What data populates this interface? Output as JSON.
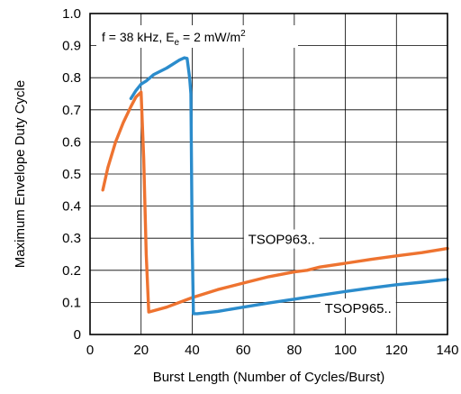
{
  "chart_data": {
    "type": "line",
    "annotation": {
      "prefix": "f = 38 kHz, E",
      "sub": "e",
      "middle": " = 2 mW/m",
      "sup": "2"
    },
    "xlabel": "Burst Length (Number of Cycles/Burst)",
    "ylabel": "Maximum Envelope Duty Cycle",
    "xlim": [
      0,
      140
    ],
    "ylim": [
      0,
      1.0
    ],
    "xticks": [
      "0",
      "20",
      "40",
      "60",
      "80",
      "100",
      "120",
      "140"
    ],
    "yticks": [
      "0",
      "0.1",
      "0.2",
      "0.3",
      "0.4",
      "0.5",
      "0.6",
      "0.7",
      "0.8",
      "0.9",
      "1.0"
    ],
    "grid": true,
    "colors": {
      "TSOP963": "#ee7330",
      "TSOP965": "#2b8ccc"
    },
    "series": [
      {
        "name": "TSOP963..",
        "color_key": "TSOP963",
        "x": [
          5,
          7,
          10,
          13,
          16,
          18,
          20,
          21,
          22,
          23,
          30,
          40,
          50,
          60,
          70,
          80,
          85,
          90,
          100,
          110,
          120,
          130,
          140
        ],
        "y": [
          0.45,
          0.52,
          0.6,
          0.66,
          0.71,
          0.74,
          0.755,
          0.55,
          0.25,
          0.07,
          0.085,
          0.115,
          0.14,
          0.16,
          0.18,
          0.195,
          0.2,
          0.21,
          0.222,
          0.234,
          0.245,
          0.255,
          0.268
        ]
      },
      {
        "name": "TSOP965..",
        "color_key": "TSOP965",
        "x": [
          16,
          18,
          20,
          22,
          25,
          30,
          35,
          37,
          38,
          39,
          39.5,
          40,
          40.5,
          42,
          50,
          60,
          70,
          80,
          90,
          100,
          110,
          120,
          130,
          140
        ],
        "y": [
          0.735,
          0.76,
          0.78,
          0.79,
          0.81,
          0.83,
          0.855,
          0.862,
          0.86,
          0.8,
          0.75,
          0.3,
          0.065,
          0.065,
          0.072,
          0.085,
          0.098,
          0.11,
          0.122,
          0.134,
          0.145,
          0.155,
          0.163,
          0.172
        ]
      }
    ],
    "labels": [
      {
        "text": "TSOP963..",
        "series": "TSOP963",
        "at": [
          75,
          0.285
        ]
      },
      {
        "text": "TSOP965..",
        "series": "TSOP965",
        "at": [
          105,
          0.07
        ]
      }
    ]
  }
}
